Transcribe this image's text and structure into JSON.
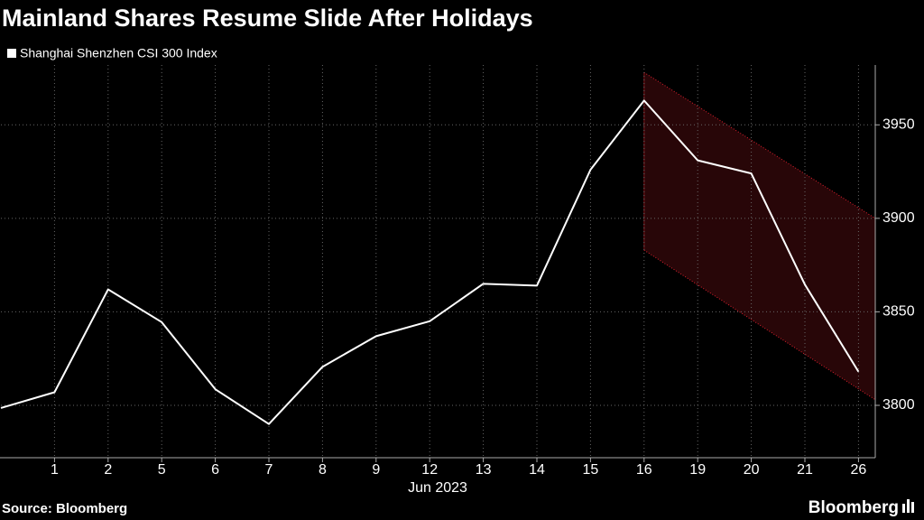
{
  "chart_data": {
    "type": "line",
    "title": "Mainland Shares Resume Slide After Holidays",
    "x_label": "Jun 2023",
    "source": "Source: Bloomberg",
    "logo": "Bloomberg",
    "categories": [
      null,
      "1",
      "2",
      "5",
      "6",
      "7",
      "8",
      "9",
      "12",
      "13",
      "14",
      "15",
      "16",
      "19",
      "20",
      "21",
      "26"
    ],
    "series": [
      {
        "name": "Shanghai Shenzhen CSI 300 Index",
        "color": "#ffffff",
        "values": [
          3798.6,
          3807,
          3862,
          3844.5,
          3808.6,
          3790,
          3820.6,
          3837,
          3845,
          3865,
          3864,
          3926,
          3963,
          3931,
          3924,
          3864.6,
          3818
        ]
      }
    ],
    "channel": {
      "color": "#e0202e",
      "upper": [
        3978,
        3900
      ],
      "lower": [
        3883,
        3803
      ]
    },
    "ylim": [
      3772,
      3982
    ],
    "yticks": [
      3800,
      3850,
      3900,
      3950
    ],
    "grid": true
  }
}
